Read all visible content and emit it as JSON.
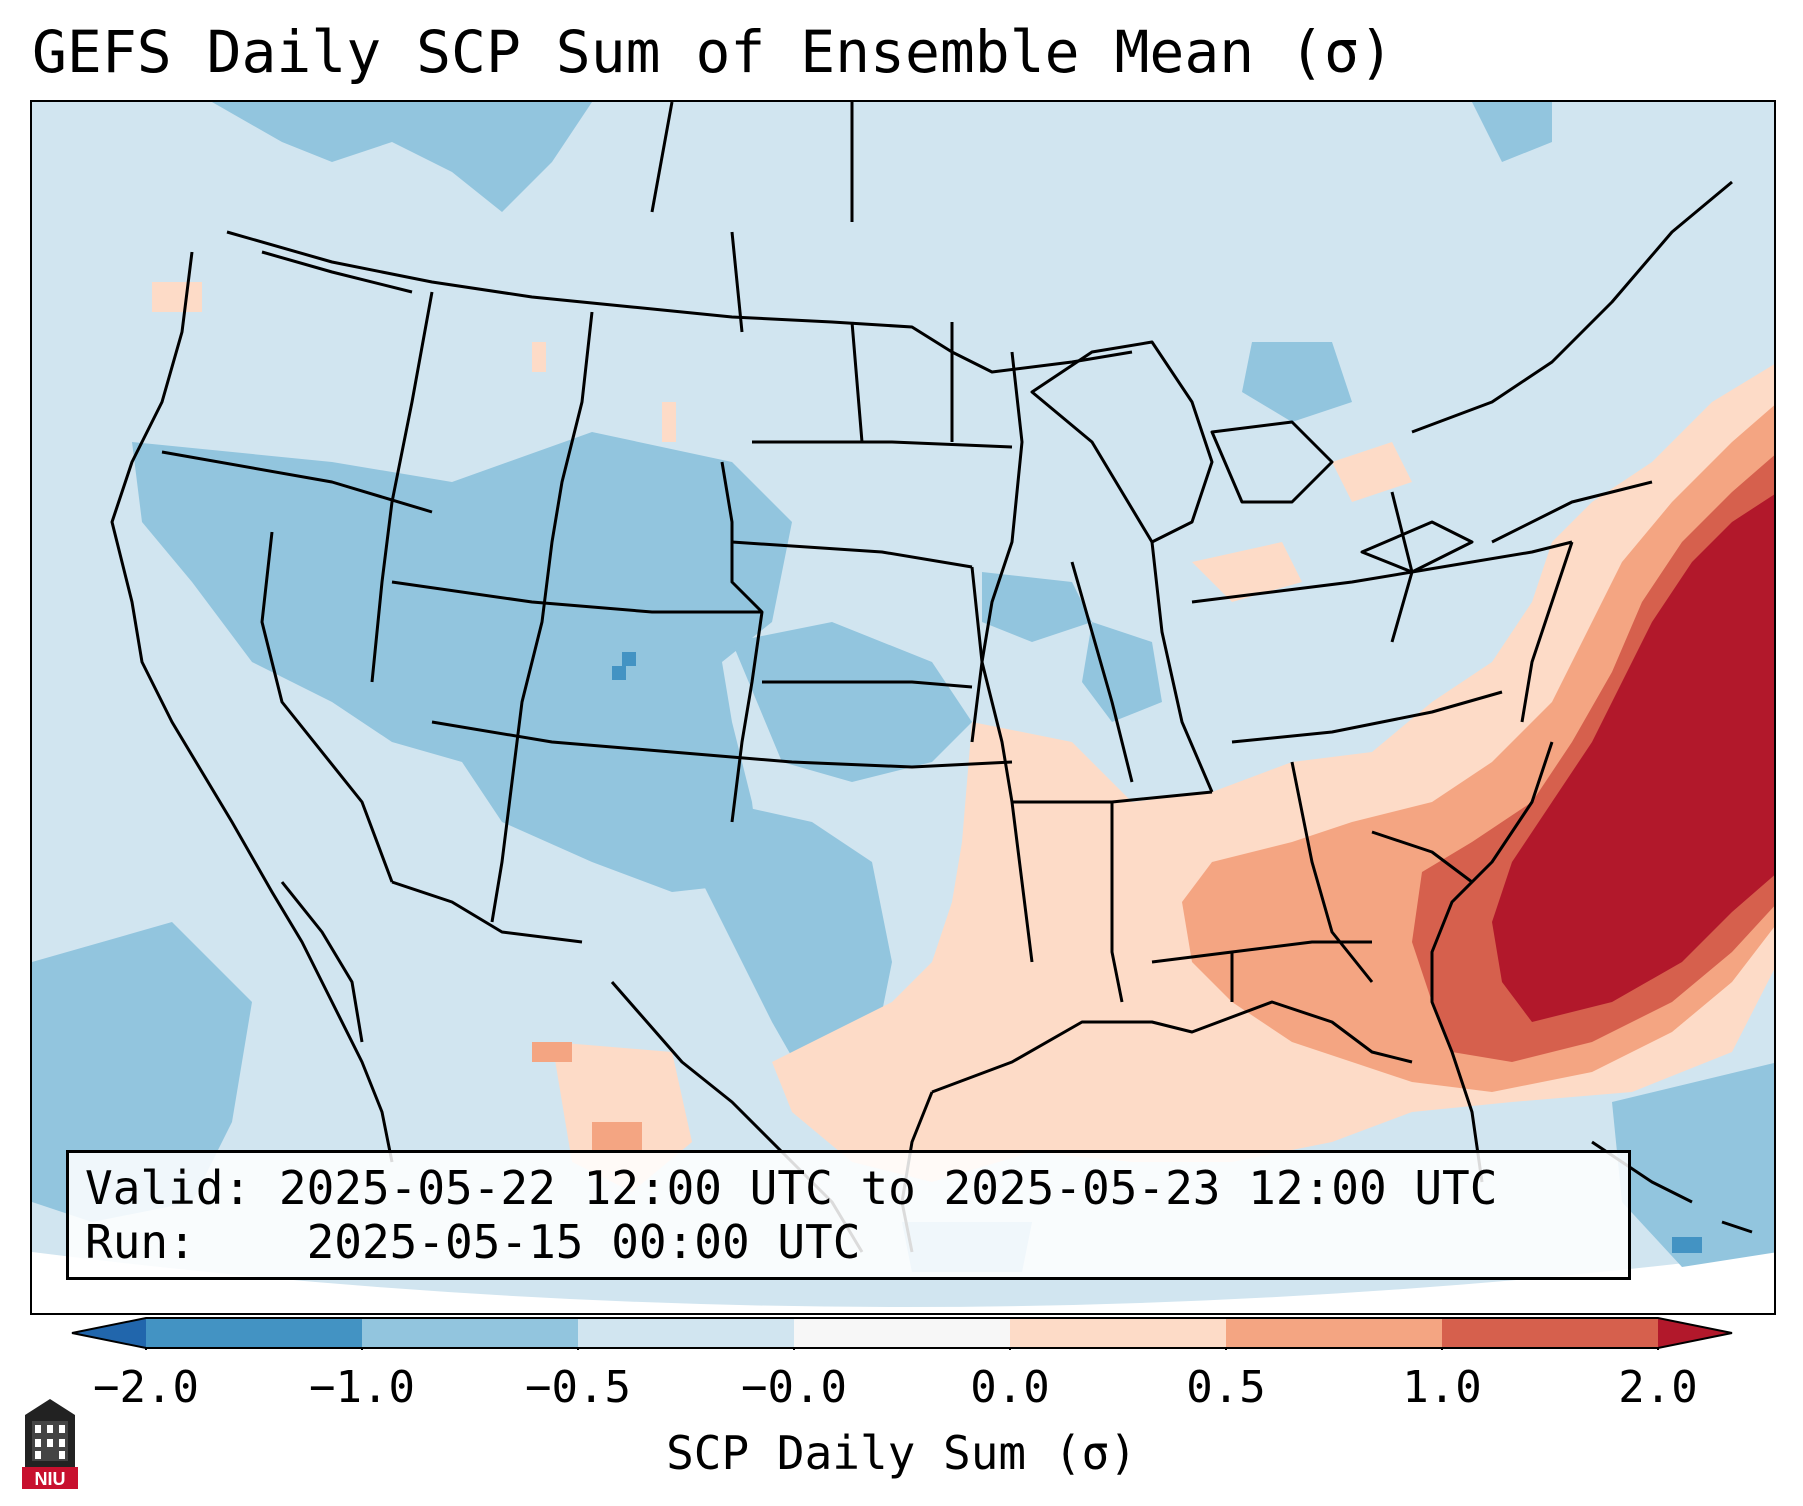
{
  "title": "GEFS Daily SCP Sum of Ensemble Mean (σ)",
  "valid_box": {
    "valid_label": "Valid:",
    "valid_value": "2025-05-22 12:00 UTC to 2025-05-23 12:00 UTC",
    "run_label": "Run:",
    "run_value": "2025-05-15 00:00 UTC"
  },
  "colorbar": {
    "label": "SCP Daily Sum (σ)",
    "ticks": [
      "−2.0",
      "−1.0",
      "−0.5",
      "−0.0",
      "0.0",
      "0.5",
      "1.0",
      "2.0"
    ],
    "colors": [
      "#2166ac",
      "#4393c3",
      "#92c5de",
      "#d1e5f0",
      "#f7f7f7",
      "#fddbc7",
      "#f4a582",
      "#d6604d",
      "#b2182b"
    ]
  },
  "logo": {
    "text": "NIU"
  }
}
